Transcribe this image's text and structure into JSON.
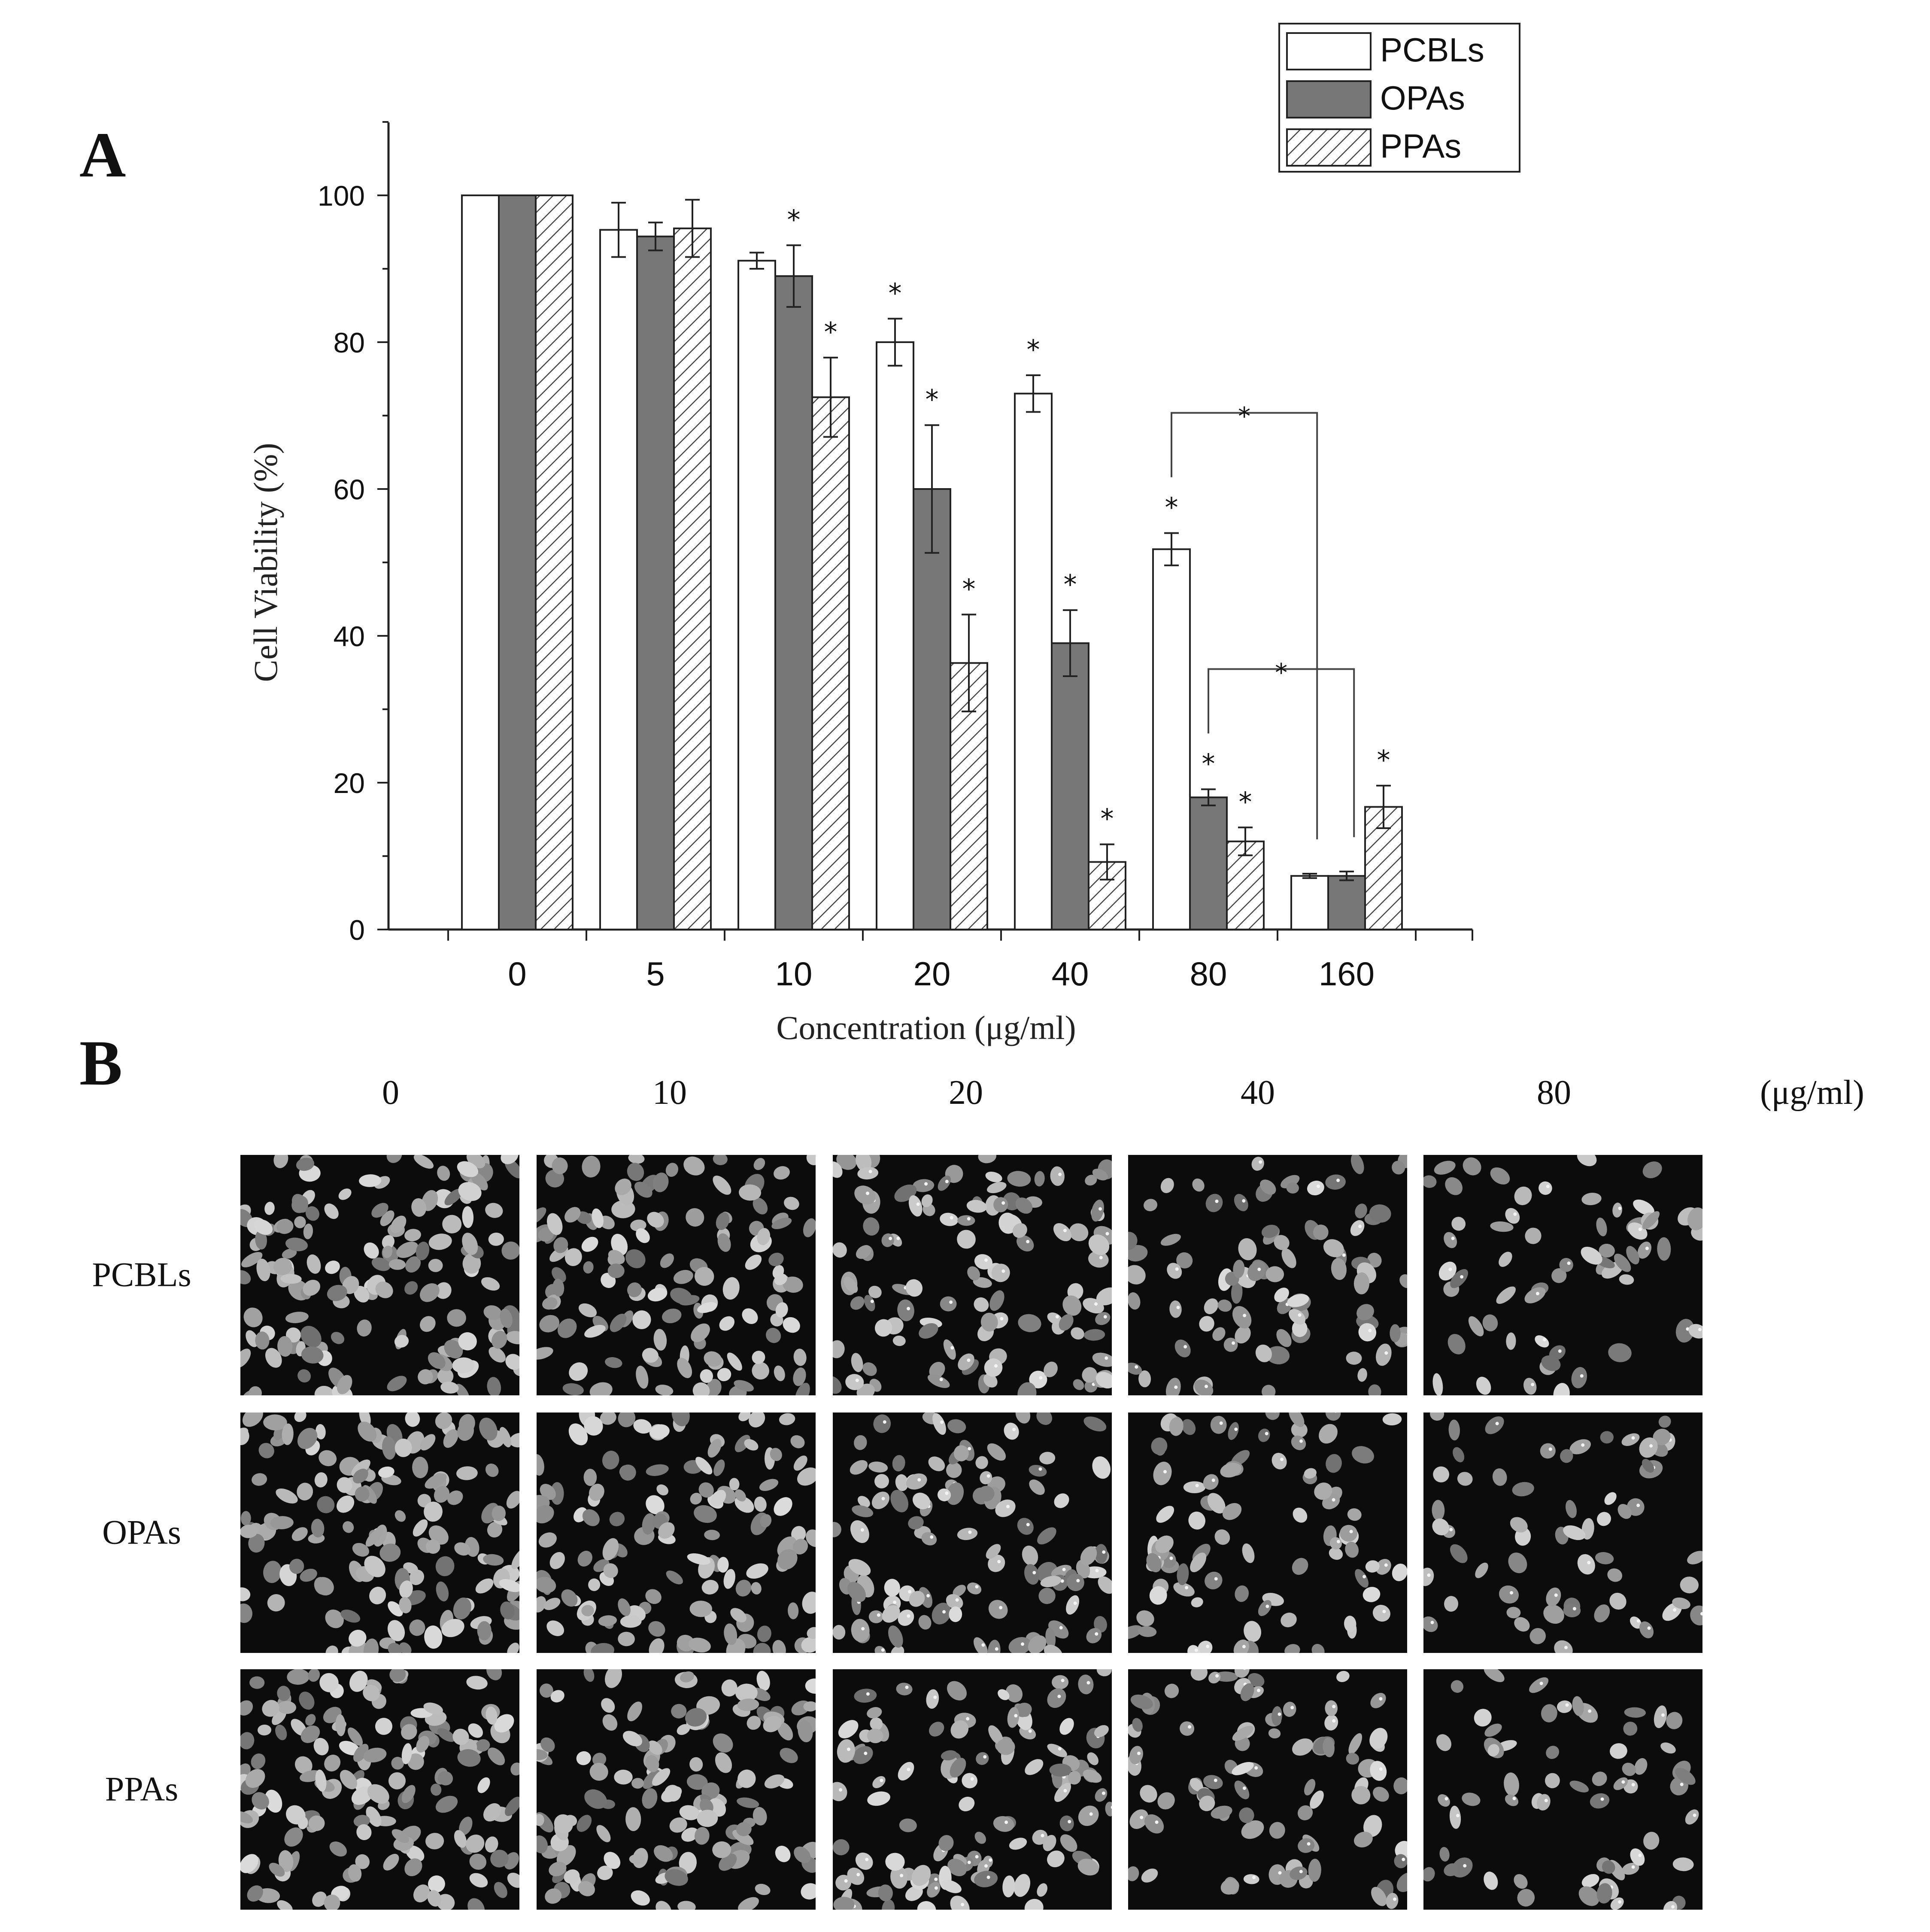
{
  "panel_a": {
    "label": "A"
  },
  "panel_b": {
    "label": "B",
    "concentrations": [
      "0",
      "10",
      "20",
      "40",
      "80"
    ],
    "unit": "(μg/ml)",
    "rows": [
      "PCBLs",
      "OPAs",
      "PPAs"
    ]
  },
  "chart_data": {
    "type": "bar",
    "xlabel": "Concentration (μg/ml)",
    "ylabel": "Cell Viability (%)",
    "categories": [
      "0",
      "5",
      "10",
      "20",
      "40",
      "80",
      "160"
    ],
    "ylim": [
      0,
      110
    ],
    "yticks": [
      0,
      20,
      40,
      60,
      80,
      100
    ],
    "legend_position": "top-right",
    "grid": false,
    "series": [
      {
        "name": "PCBLs",
        "fill": "white",
        "color": "#ffffff",
        "values": [
          100,
          95.3,
          91.1,
          80,
          73,
          51.8,
          7.3
        ],
        "errors": [
          0,
          3.7,
          1.1,
          3.2,
          2.5,
          2.2,
          0.3
        ],
        "significant": [
          false,
          false,
          false,
          true,
          true,
          true,
          false
        ]
      },
      {
        "name": "OPAs",
        "fill": "solid",
        "color": "#777777",
        "values": [
          100,
          94.4,
          89,
          60,
          39,
          18,
          7.3
        ],
        "errors": [
          0,
          1.9,
          4.2,
          8.7,
          4.5,
          1.1,
          0.6
        ],
        "significant": [
          false,
          false,
          true,
          true,
          true,
          true,
          false
        ]
      },
      {
        "name": "PPAs",
        "fill": "hatch",
        "color": "#ffffff",
        "values": [
          100,
          95.5,
          72.5,
          36.3,
          9.2,
          12,
          16.7
        ],
        "errors": [
          0,
          3.9,
          5.4,
          6.6,
          2.4,
          1.9,
          2.9
        ],
        "significant": [
          false,
          false,
          true,
          true,
          true,
          true,
          true
        ]
      }
    ],
    "comparisons": [
      {
        "series": "PCBLs",
        "from": "80",
        "to": "160",
        "label": "*"
      },
      {
        "series": "OPAs",
        "from": "80",
        "to": "160",
        "label": "*"
      }
    ],
    "significance_marker": "*"
  }
}
